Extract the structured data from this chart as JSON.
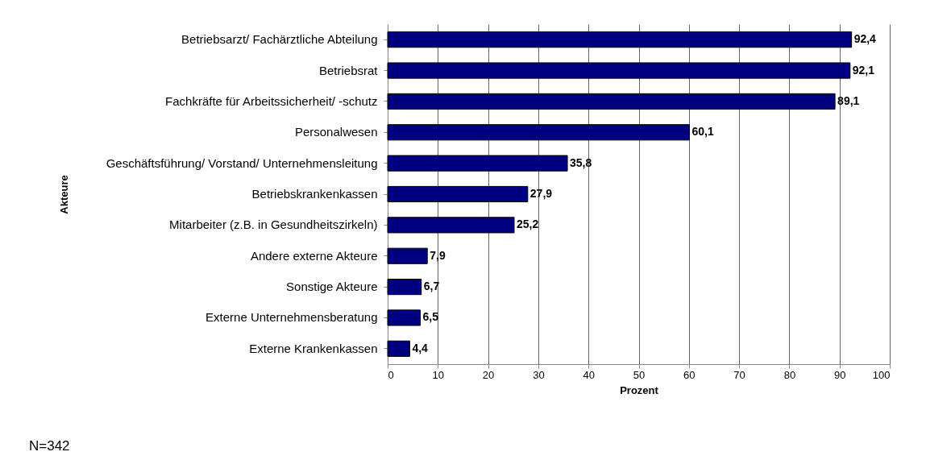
{
  "chart_data": {
    "type": "bar",
    "orientation": "horizontal",
    "ylabel": "Akteure",
    "xlabel": "Prozent",
    "categories": [
      "Betriebsarzt/ Fachärztliche Abteilung",
      "Betriebsrat",
      "Fachkräfte für Arbeitssicherheit/ -schutz",
      "Personalwesen",
      "Geschäftsführung/ Vorstand/ Unternehmensleitung",
      "Betriebskrankenkassen",
      "Mitarbeiter (z.B. in Gesundheitszirkeln)",
      "Andere externe Akteure",
      "Sonstige Akteure",
      "Externe Unternehmensberatung",
      "Externe Krankenkassen"
    ],
    "values": [
      92.4,
      92.1,
      89.1,
      60.1,
      35.8,
      27.9,
      25.2,
      7.9,
      6.7,
      6.5,
      4.4
    ],
    "value_labels": [
      "92,4",
      "92,1",
      "89,1",
      "60,1",
      "35,8",
      "27,9",
      "25,2",
      "7,9",
      "6,7",
      "6,5",
      "4,4"
    ],
    "color": "#000080",
    "xlim": [
      0,
      100
    ],
    "xticks": [
      0,
      10,
      20,
      30,
      40,
      50,
      60,
      70,
      80,
      90,
      100
    ],
    "grid": "x",
    "annotations": [
      "N=342"
    ]
  }
}
